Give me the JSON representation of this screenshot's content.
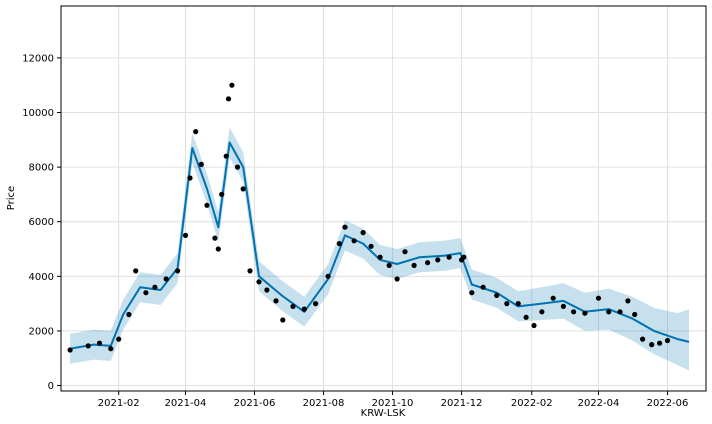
{
  "chart_data": {
    "type": "line",
    "title": "",
    "xlabel": "KRW-LSK",
    "ylabel": "Price",
    "xlim": [
      "2020-12-12",
      "2022-07-05"
    ],
    "ylim": [
      -200,
      13900
    ],
    "grid": true,
    "x_ticks": [
      "2021-02",
      "2021-04",
      "2021-06",
      "2021-08",
      "2021-10",
      "2021-12",
      "2022-02",
      "2022-04",
      "2022-06"
    ],
    "y_ticks": [
      0,
      2000,
      4000,
      6000,
      8000,
      10000,
      12000
    ],
    "colors": {
      "forecast_line": "#0072B2",
      "uncertainty_band": "#0072B2",
      "observed_points": "#000000",
      "grid": "#e0e0e0"
    },
    "series": [
      {
        "kind": "forecast",
        "x": [
          "2020-12-20",
          "2021-01-10",
          "2021-01-25",
          "2021-02-05",
          "2021-02-20",
          "2021-03-10",
          "2021-03-25",
          "2021-04-07",
          "2021-04-20",
          "2021-04-30",
          "2021-05-10",
          "2021-05-22",
          "2021-06-05",
          "2021-06-25",
          "2021-07-15",
          "2021-08-05",
          "2021-08-20",
          "2021-09-05",
          "2021-09-20",
          "2021-10-05",
          "2021-10-25",
          "2021-11-15",
          "2021-11-30",
          "2021-12-10",
          "2022-01-01",
          "2022-01-20",
          "2022-02-10",
          "2022-03-01",
          "2022-03-20",
          "2022-04-10",
          "2022-05-01",
          "2022-05-20",
          "2022-06-10",
          "2022-06-20"
        ],
        "y": [
          1350,
          1500,
          1450,
          2600,
          3600,
          3500,
          4300,
          8700,
          7200,
          5800,
          8900,
          8000,
          4000,
          3300,
          2700,
          3900,
          5500,
          5200,
          4600,
          4450,
          4700,
          4750,
          4850,
          3700,
          3400,
          2900,
          3000,
          3100,
          2700,
          2800,
          2450,
          2000,
          1700,
          1600
        ],
        "lower": [
          800,
          950,
          900,
          2050,
          3050,
          2950,
          3750,
          8150,
          6650,
          5250,
          8350,
          7450,
          3450,
          2750,
          2150,
          3350,
          4950,
          4650,
          4050,
          3900,
          4150,
          4200,
          4300,
          3150,
          2850,
          2350,
          2400,
          2450,
          2000,
          2050,
          1650,
          1150,
          750,
          550
        ],
        "upper": [
          1900,
          2050,
          2000,
          3150,
          4150,
          4050,
          4850,
          9250,
          7750,
          6350,
          9450,
          8550,
          4550,
          3850,
          3250,
          4450,
          6050,
          5750,
          5150,
          5000,
          5250,
          5300,
          5400,
          4250,
          3950,
          3450,
          3600,
          3750,
          3400,
          3550,
          3250,
          2850,
          2650,
          2800
        ]
      },
      {
        "kind": "observed",
        "x": [
          "2020-12-20",
          "2021-01-05",
          "2021-01-15",
          "2021-01-25",
          "2021-02-01",
          "2021-02-10",
          "2021-02-16",
          "2021-02-25",
          "2021-03-05",
          "2021-03-15",
          "2021-03-25",
          "2021-04-01",
          "2021-04-05",
          "2021-04-10",
          "2021-04-15",
          "2021-04-20",
          "2021-04-27",
          "2021-04-30",
          "2021-05-03",
          "2021-05-07",
          "2021-05-09",
          "2021-05-12",
          "2021-05-17",
          "2021-05-22",
          "2021-05-28",
          "2021-06-05",
          "2021-06-12",
          "2021-06-20",
          "2021-06-26",
          "2021-07-05",
          "2021-07-15",
          "2021-07-25",
          "2021-08-05",
          "2021-08-15",
          "2021-08-20",
          "2021-08-28",
          "2021-09-05",
          "2021-09-12",
          "2021-09-20",
          "2021-09-28",
          "2021-10-05",
          "2021-10-12",
          "2021-10-20",
          "2021-11-01",
          "2021-11-10",
          "2021-11-20",
          "2021-12-01",
          "2021-12-03",
          "2021-12-10",
          "2021-12-20",
          "2022-01-01",
          "2022-01-10",
          "2022-01-20",
          "2022-01-27",
          "2022-02-03",
          "2022-02-10",
          "2022-02-20",
          "2022-03-01",
          "2022-03-10",
          "2022-03-20",
          "2022-04-01",
          "2022-04-10",
          "2022-04-20",
          "2022-04-27",
          "2022-05-03",
          "2022-05-10",
          "2022-05-18",
          "2022-05-25",
          "2022-06-01"
        ],
        "y": [
          1300,
          1450,
          1550,
          1350,
          1700,
          2600,
          4200,
          3400,
          3600,
          3900,
          4200,
          5500,
          7600,
          9300,
          8100,
          6600,
          5400,
          5000,
          7000,
          8400,
          10500,
          11000,
          8000,
          7200,
          4200,
          3800,
          3500,
          3100,
          2400,
          2900,
          2800,
          3000,
          4000,
          5200,
          5800,
          5300,
          5600,
          5100,
          4700,
          4400,
          3900,
          4900,
          4400,
          4500,
          4600,
          4700,
          4600,
          4700,
          3400,
          3600,
          3300,
          3000,
          3000,
          2500,
          2200,
          2700,
          3200,
          2900,
          2700,
          2650,
          3200,
          2700,
          2700,
          3100,
          2600,
          1700,
          1500,
          1550,
          1650
        ]
      }
    ]
  }
}
